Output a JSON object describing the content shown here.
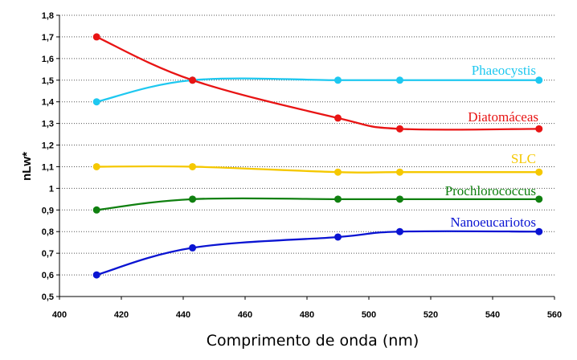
{
  "chart_data": {
    "type": "line",
    "xlabel": "Comprimento de onda (nm)",
    "ylabel": "nLw*",
    "xlim": [
      400,
      560
    ],
    "ylim": [
      0.5,
      1.8
    ],
    "xticks": [
      "400",
      "420",
      "440",
      "460",
      "480",
      "500",
      "520",
      "540",
      "560"
    ],
    "yticks": [
      "0,5",
      "0,6",
      "0,7",
      "0,8",
      "0,9",
      "1",
      "1,1",
      "1,2",
      "1,3",
      "1,4",
      "1,5",
      "1,6",
      "1,7",
      "1,8"
    ],
    "grid": "horizontal",
    "x": [
      412,
      443,
      490,
      510,
      555
    ],
    "series": [
      {
        "name": "Phaeocystis",
        "color": "#1ec8f0",
        "values": [
          1.4,
          1.5,
          1.5,
          1.5,
          1.5
        ]
      },
      {
        "name": "Diatomáceas",
        "color": "#e81414",
        "values": [
          1.7,
          1.5,
          1.325,
          1.275,
          1.275
        ]
      },
      {
        "name": "SLC",
        "color": "#f5c800",
        "values": [
          1.1,
          1.1,
          1.075,
          1.075,
          1.075
        ]
      },
      {
        "name": "Prochlorococcus",
        "color": "#108010",
        "values": [
          0.9,
          0.95,
          0.95,
          0.95,
          0.95
        ]
      },
      {
        "name": "Nanoeucariotos",
        "color": "#0a14d2",
        "values": [
          0.6,
          0.725,
          0.775,
          0.8,
          0.8
        ]
      }
    ]
  }
}
